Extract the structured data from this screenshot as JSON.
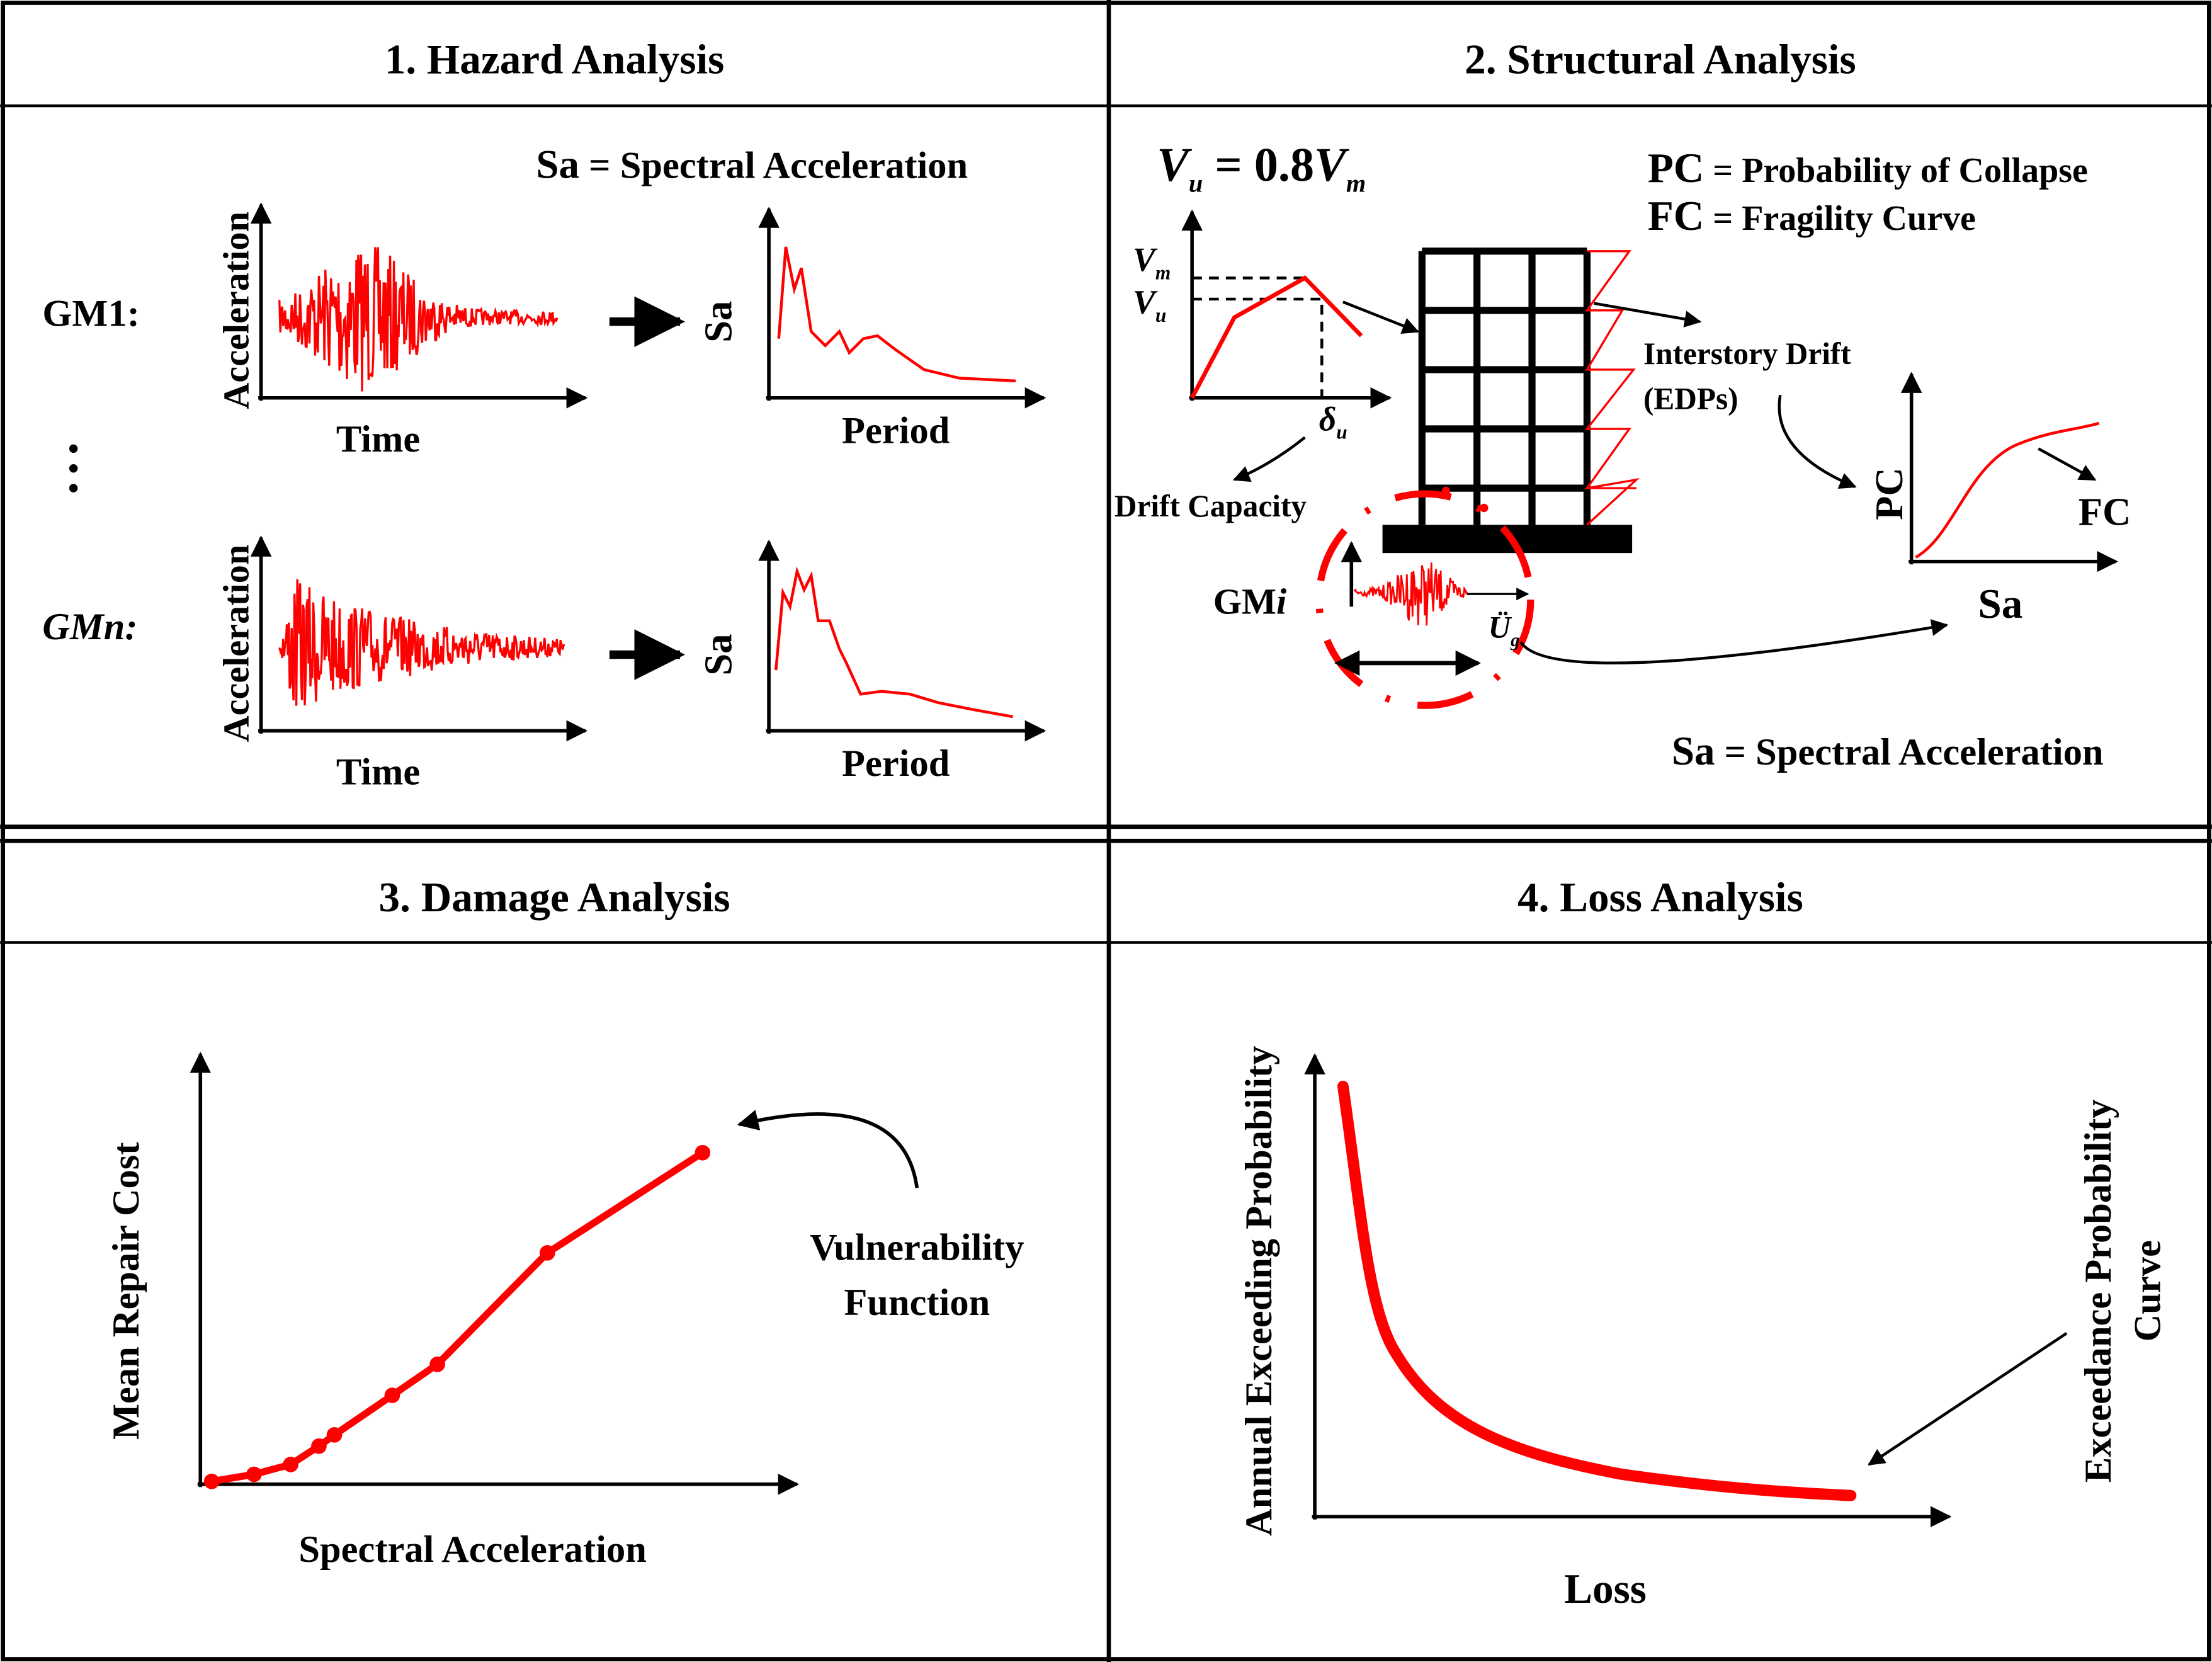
{
  "panels": [
    {
      "title": "1. Hazard Analysis",
      "legend": {
        "abbr": "Sa",
        "text": "= Spectral Acceleration"
      },
      "rows": [
        {
          "label": "GM1:",
          "y_label": "Acceleration",
          "x_label": "Time",
          "spectrum_y_label": "Sa",
          "spectrum_x_label": "Period"
        },
        {
          "label": "GMn:",
          "y_label": "Acceleration",
          "x_label": "Time",
          "spectrum_y_label": "Sa",
          "spectrum_x_label": "Period"
        }
      ]
    },
    {
      "title": "2. Structural Analysis",
      "formula": {
        "lhs": "V",
        "lhs_sub": "u",
        "eq": " = 0.8",
        "rhs": "V",
        "rhs_sub": "m"
      },
      "definitions": [
        {
          "abbr": "PC",
          "text": "= Probability of Collapse"
        },
        {
          "abbr": "FC",
          "text": "= Fragility Curve"
        }
      ],
      "pushover": {
        "vm": "V",
        "vm_sub": "m",
        "vu": "V",
        "vu_sub": "u",
        "delta": "δ",
        "delta_sub": "u"
      },
      "drift_capacity": "Drift Capacity",
      "interstory": [
        "Interstory Drift",
        "(EDPs)"
      ],
      "fragility": {
        "y_label": "PC",
        "x_label": "Sa",
        "curve_label": "FC"
      },
      "ground_motion": {
        "label": "GM",
        "label_i": "i",
        "accel": "Ü",
        "accel_sub": "g"
      },
      "legend": {
        "abbr": "Sa",
        "text": "= Spectral Acceleration"
      }
    },
    {
      "title": "3. Damage Analysis",
      "y_label": "Mean Repair Cost",
      "x_label": "Spectral Acceleration",
      "curve_label": [
        "Vulnerability",
        "Function"
      ]
    },
    {
      "title": "4. Loss Analysis",
      "y_label": "Annual Exceeding Probability",
      "x_label": "Loss",
      "curve_label": [
        "Exceedance Probability",
        "Curve"
      ]
    }
  ]
}
